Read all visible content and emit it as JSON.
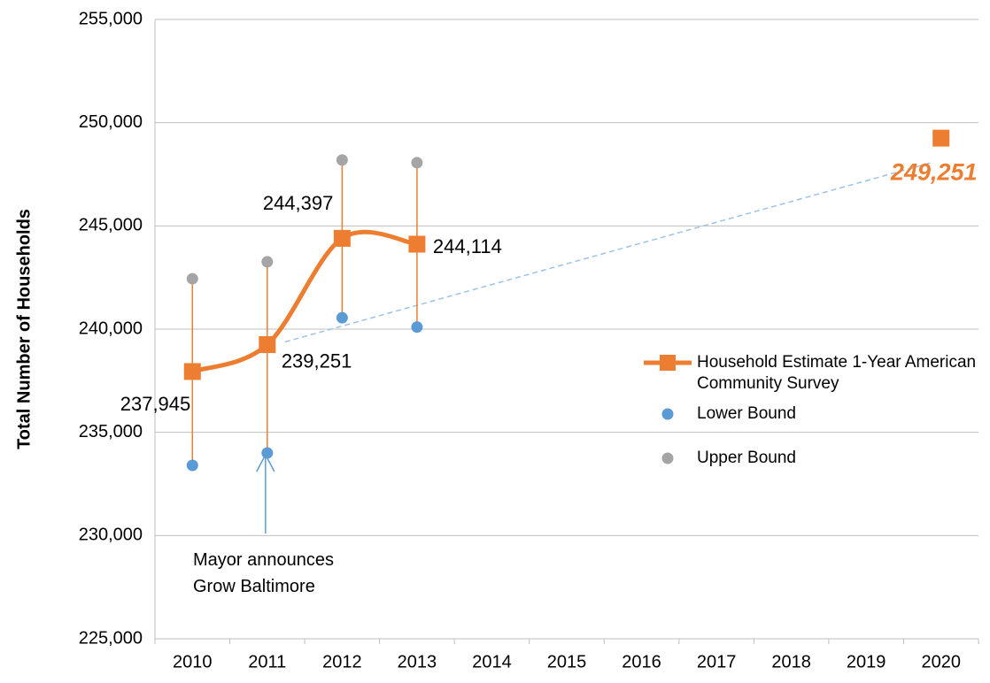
{
  "chart_data": {
    "type": "line",
    "y_label": "Total Number of Households",
    "categories": [
      "2010",
      "2011",
      "2012",
      "2013",
      "2014",
      "2015",
      "2016",
      "2017",
      "2018",
      "2019",
      "2020"
    ],
    "series": [
      {
        "name": "Household Estimate 1-Year American Community Survey",
        "color": "#ed7d31",
        "values": [
          237945,
          239251,
          244397,
          244114,
          null,
          null,
          null,
          null,
          null,
          null,
          249251
        ],
        "value_labels": [
          "237,945",
          "239,251",
          "244,397",
          "244,114",
          null,
          null,
          null,
          null,
          null,
          null,
          "249,251"
        ]
      },
      {
        "name": "Lower Bound",
        "color": "#5b9bd5",
        "values": [
          233400,
          234000,
          240550,
          240100,
          null,
          null,
          null,
          null,
          null,
          null,
          null
        ]
      },
      {
        "name": "Upper Bound",
        "color": "#a5a5a5",
        "values": [
          242440,
          243260,
          248190,
          248060,
          null,
          null,
          null,
          null,
          null,
          null,
          null
        ]
      }
    ],
    "ylim": [
      225000,
      255000
    ],
    "yticks": [
      {
        "value": 225000,
        "label": "225,000"
      },
      {
        "value": 230000,
        "label": "230,000"
      },
      {
        "value": 235000,
        "label": "235,000"
      },
      {
        "value": 240000,
        "label": "240,000"
      },
      {
        "value": 245000,
        "label": "245,000"
      },
      {
        "value": 250000,
        "label": "250,000"
      },
      {
        "value": 255000,
        "label": "255,000"
      }
    ],
    "grid": true,
    "trendline_color": "#9dc3e6",
    "annotation": "Mayor announces Grow Baltimore",
    "annotation_category": 1
  }
}
